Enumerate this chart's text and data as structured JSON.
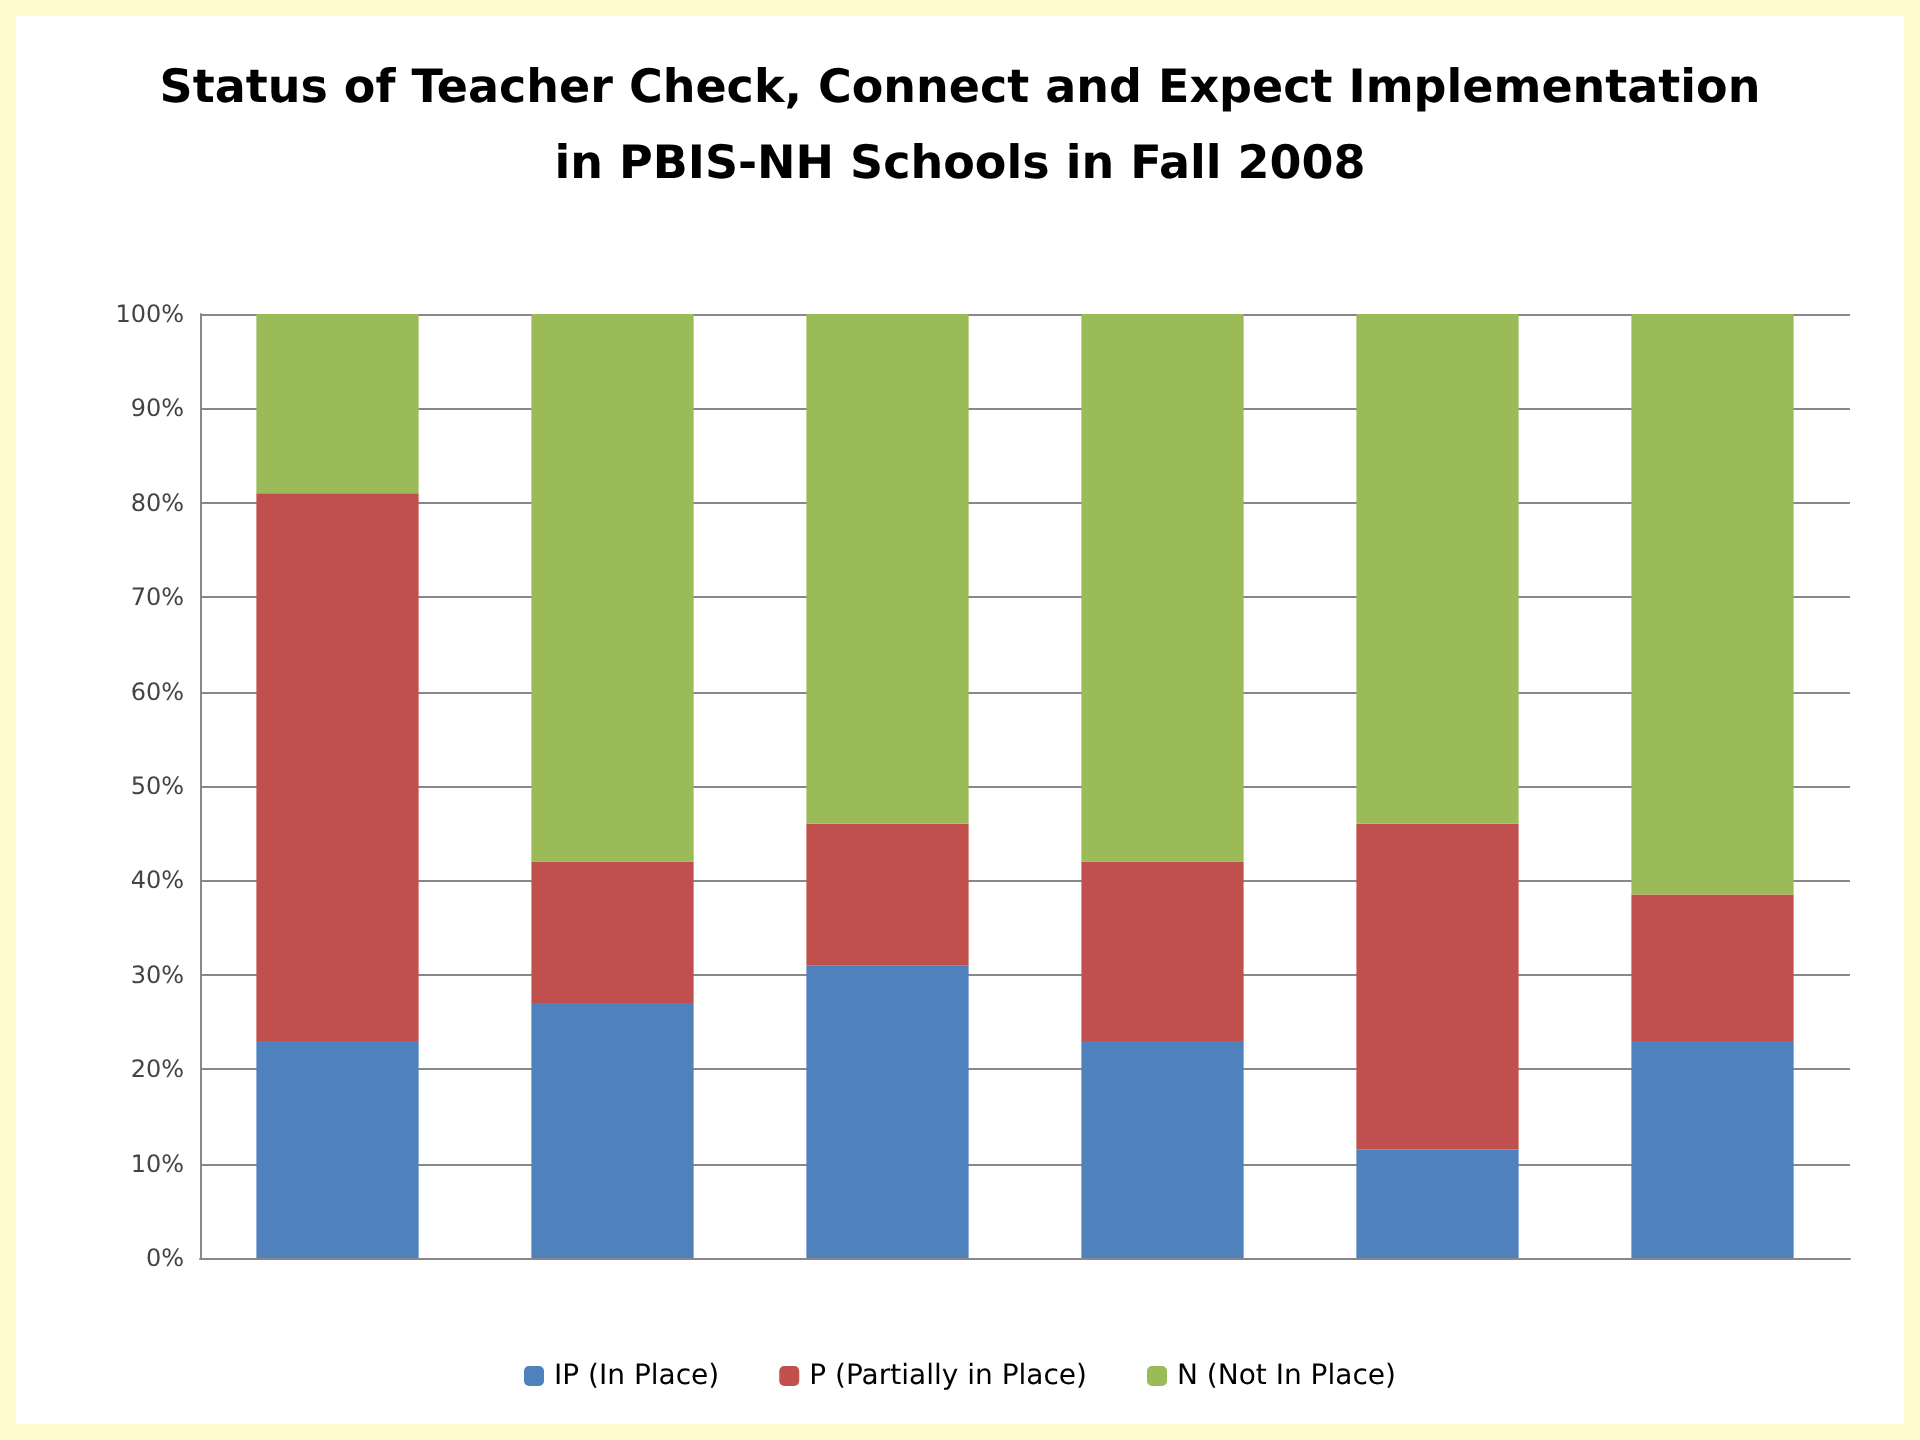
{
  "chart_data": {
    "type": "bar",
    "title": "Status of Teacher Check, Connect and Expect Implementation\nin PBIS-NH Schools in Fall 2008",
    "categories": [
      null,
      null,
      null,
      null,
      null,
      null
    ],
    "stacked": true,
    "series": [
      {
        "name": "IP (In Place)",
        "color": "#4f81bd",
        "values": [
          23,
          27,
          31,
          23,
          11.5,
          23
        ]
      },
      {
        "name": "P (Partially in Place)",
        "color": "#c0504d",
        "values": [
          58,
          15,
          15,
          19,
          34.5,
          15.5
        ]
      },
      {
        "name": "N (Not In Place)",
        "color": "#9bbb59",
        "values": [
          19,
          58,
          54,
          58,
          54,
          61.5
        ]
      }
    ],
    "ylim": [
      0,
      100
    ],
    "yticks": [
      {
        "value": 0,
        "label": "0%"
      },
      {
        "value": 10,
        "label": "10%"
      },
      {
        "value": 20,
        "label": "20%"
      },
      {
        "value": 30,
        "label": "30%"
      },
      {
        "value": 40,
        "label": "40%"
      },
      {
        "value": 50,
        "label": "50%"
      },
      {
        "value": 60,
        "label": "60%"
      },
      {
        "value": 70,
        "label": "70%"
      },
      {
        "value": 80,
        "label": "80%"
      },
      {
        "value": 90,
        "label": "90%"
      },
      {
        "value": 100,
        "label": "100%"
      }
    ],
    "grid": "y",
    "legend": "bottom"
  }
}
